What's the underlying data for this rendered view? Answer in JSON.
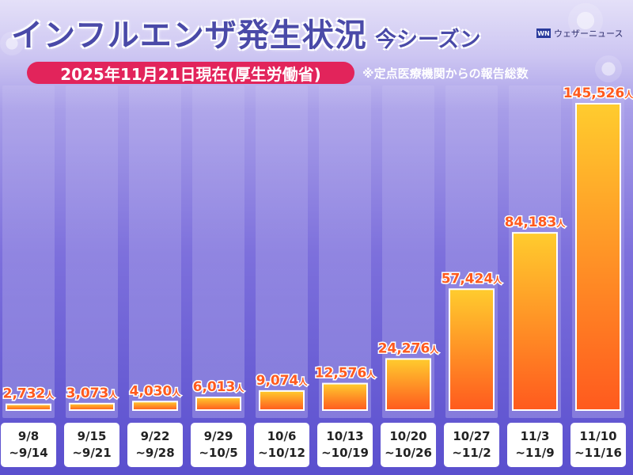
{
  "header": {
    "title": "インフルエンザ発生状況",
    "subtitle": "今シーズン",
    "date_badge": "2025年11月21日現在(厚生労働省)",
    "note": "※定点医療機関からの報告総数",
    "logo_text": "ウェザーニュース",
    "logo_mark": "WN"
  },
  "colors": {
    "title": "#4a4aa8",
    "badge": "#e2245b",
    "bar_top": "#ffcc2e",
    "bar_bottom": "#ff5a1e",
    "value_label": "#ff5a1e"
  },
  "chart_data": {
    "type": "bar",
    "title": "インフルエンザ発生状況",
    "unit": "人",
    "categories": [
      [
        "9/8",
        "~9/14"
      ],
      [
        "9/15",
        "~9/21"
      ],
      [
        "9/22",
        "~9/28"
      ],
      [
        "9/29",
        "~10/5"
      ],
      [
        "10/6",
        "~10/12"
      ],
      [
        "10/13",
        "~10/19"
      ],
      [
        "10/20",
        "~10/26"
      ],
      [
        "10/27",
        "~11/2"
      ],
      [
        "11/3",
        "~11/9"
      ],
      [
        "11/10",
        "~11/16"
      ]
    ],
    "values": [
      2732,
      3073,
      4030,
      6013,
      9074,
      12576,
      24276,
      57424,
      84183,
      145526
    ],
    "value_labels": [
      "2,732",
      "3,073",
      "4,030",
      "6,013",
      "9,074",
      "12,576",
      "24,276",
      "57,424",
      "84,183",
      "145,526"
    ],
    "ylim": [
      0,
      145526
    ],
    "grid": false,
    "legend": "none"
  }
}
